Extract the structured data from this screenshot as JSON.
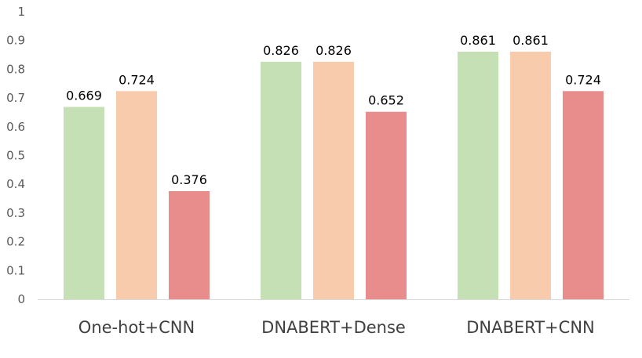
{
  "chart_data": {
    "type": "bar",
    "categories": [
      "One-hot+CNN",
      "DNABERT+Dense",
      "DNABERT+CNN"
    ],
    "series": [
      {
        "values": [
          0.669,
          0.826,
          0.861
        ],
        "color": "#c5e0b4"
      },
      {
        "values": [
          0.724,
          0.826,
          0.861
        ],
        "color": "#f8cbad"
      },
      {
        "values": [
          0.376,
          0.652,
          0.724
        ],
        "color": "#e88c8c"
      }
    ],
    "data_labels": [
      [
        "0.669",
        "0.826",
        "0.861"
      ],
      [
        "0.724",
        "0.826",
        "0.861"
      ],
      [
        "0.376",
        "0.652",
        "0.724"
      ]
    ],
    "y_ticks": [
      "0",
      "0.1",
      "0.2",
      "0.3",
      "0.4",
      "0.5",
      "0.6",
      "0.7",
      "0.8",
      "0.9",
      "1"
    ],
    "ylim": [
      0,
      1
    ],
    "grid": false,
    "legend": "none",
    "axis_color": "#d9d9d9"
  }
}
